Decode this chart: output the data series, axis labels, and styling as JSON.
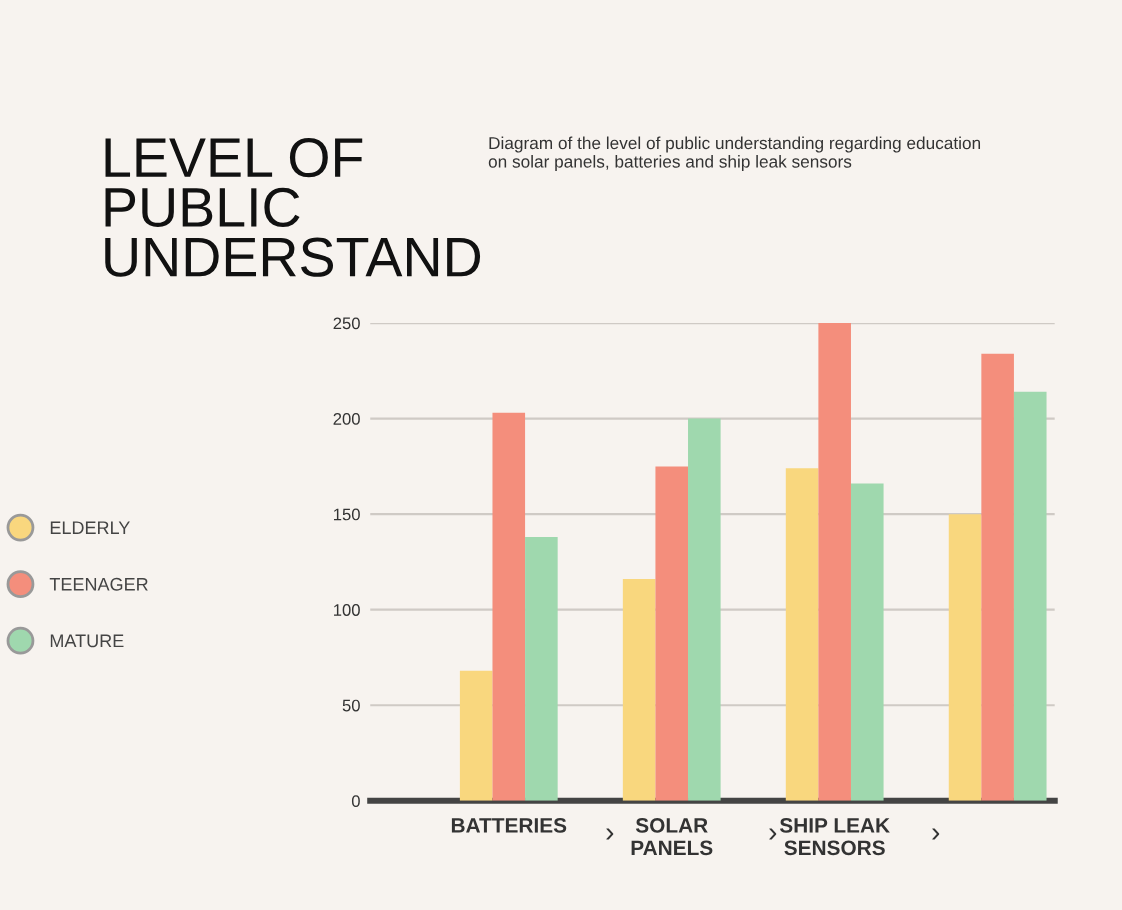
{
  "chart_data": {
    "type": "bar",
    "title": "LEVEL OF\nPUBLIC\nUNDERSTAND",
    "subtitle": "Diagram of the level of public understanding regarding education\non solar panels, batteries and ship leak sensors",
    "categories": [
      "BATTERIES",
      "SOLAR\nPANELS",
      "SHIP LEAK\nSENSORS",
      null
    ],
    "series": [
      {
        "name": "ELDERLY",
        "color": "#f9d77e",
        "values": [
          68,
          116,
          174,
          150
        ]
      },
      {
        "name": "TEENAGER",
        "color": "#f48e7c",
        "values": [
          203,
          175,
          250,
          234
        ]
      },
      {
        "name": "MATURE",
        "color": "#9fd8ae",
        "values": [
          138,
          200,
          166,
          214
        ]
      }
    ],
    "annotations": [
      "›",
      "›",
      "›"
    ],
    "ylim": [
      0,
      250
    ],
    "yticks": [
      0,
      50,
      100,
      150,
      200,
      250
    ],
    "grid": "y",
    "legend": "left"
  }
}
